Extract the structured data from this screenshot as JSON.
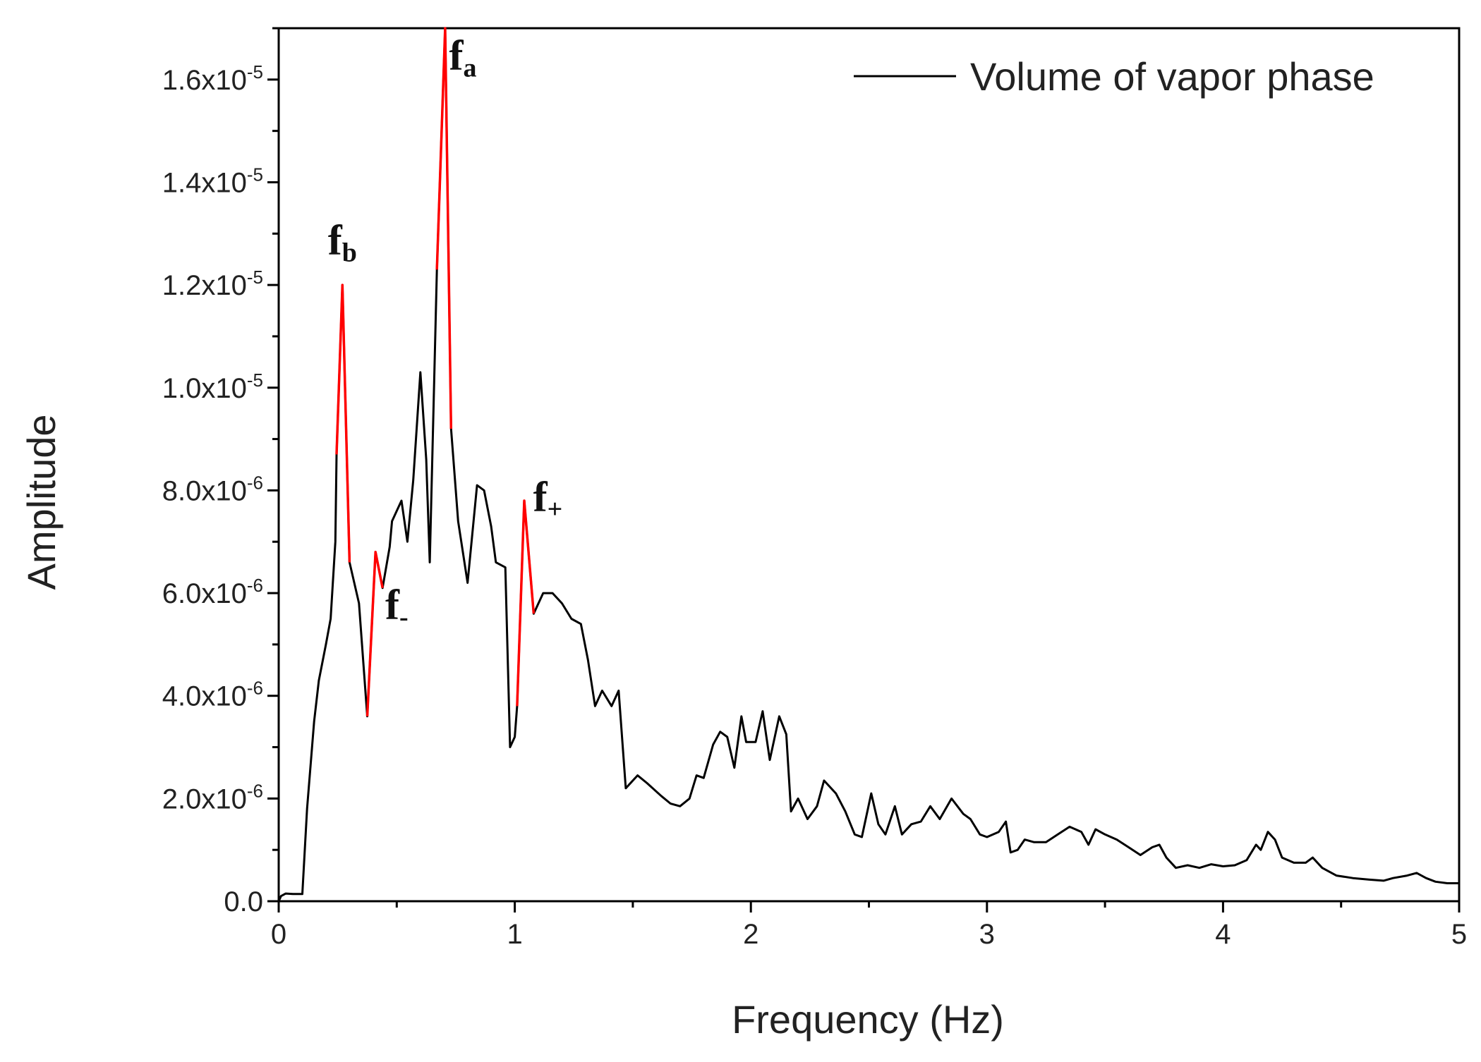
{
  "chart_data": {
    "type": "line",
    "xlabel": "Frequency (Hz)",
    "ylabel": "Amplitude",
    "xlim": [
      0,
      5
    ],
    "ylim": [
      0,
      1.7e-05
    ],
    "x_ticks": [
      {
        "value": 0,
        "label": "0"
      },
      {
        "value": 1,
        "label": "1"
      },
      {
        "value": 2,
        "label": "2"
      },
      {
        "value": 3,
        "label": "3"
      },
      {
        "value": 4,
        "label": "4"
      },
      {
        "value": 5,
        "label": "5"
      }
    ],
    "y_ticks": [
      {
        "value": 0,
        "base": "0.0",
        "exp": ""
      },
      {
        "value": 2e-06,
        "base": "2.0x10",
        "exp": "-6"
      },
      {
        "value": 4e-06,
        "base": "4.0x10",
        "exp": "-6"
      },
      {
        "value": 6e-06,
        "base": "6.0x10",
        "exp": "-6"
      },
      {
        "value": 8e-06,
        "base": "8.0x10",
        "exp": "-6"
      },
      {
        "value": 1e-05,
        "base": "1.0x10",
        "exp": "-5"
      },
      {
        "value": 1.2e-05,
        "base": "1.2x10",
        "exp": "-5"
      },
      {
        "value": 1.4e-05,
        "base": "1.4x10",
        "exp": "-5"
      },
      {
        "value": 1.6e-05,
        "base": "1.6x10",
        "exp": "-5"
      }
    ],
    "grid": false,
    "legend_position": "top-right",
    "series": [
      {
        "name": "Volume of vapor phase",
        "color": "#000000",
        "points": [
          [
            0.0,
            0.0
          ],
          [
            0.01,
            1e-07
          ],
          [
            0.03,
            1.5e-07
          ],
          [
            0.06,
            1.4e-07
          ],
          [
            0.1,
            1.4e-07
          ],
          [
            0.12,
            1.8e-06
          ],
          [
            0.15,
            3.5e-06
          ],
          [
            0.17,
            4.3e-06
          ],
          [
            0.2,
            5e-06
          ],
          [
            0.22,
            5.5e-06
          ],
          [
            0.24,
            7e-06
          ],
          [
            0.245,
            8.7e-06
          ],
          [
            0.27,
            1.2e-05
          ],
          [
            0.3,
            6.6e-06
          ],
          [
            0.34,
            5.8e-06
          ],
          [
            0.375,
            3.6e-06
          ],
          [
            0.41,
            6.8e-06
          ],
          [
            0.44,
            6.1e-06
          ],
          [
            0.47,
            6.9e-06
          ],
          [
            0.48,
            7.4e-06
          ],
          [
            0.5,
            7.6e-06
          ],
          [
            0.52,
            7.8e-06
          ],
          [
            0.545,
            7e-06
          ],
          [
            0.57,
            8.2e-06
          ],
          [
            0.6,
            1.03e-05
          ],
          [
            0.625,
            8.6e-06
          ],
          [
            0.64,
            6.6e-06
          ],
          [
            0.67,
            1.23e-05
          ],
          [
            0.705,
            1.7e-05
          ],
          [
            0.73,
            9.2e-06
          ],
          [
            0.76,
            7.4e-06
          ],
          [
            0.8,
            6.2e-06
          ],
          [
            0.84,
            8.1e-06
          ],
          [
            0.87,
            8e-06
          ],
          [
            0.9,
            7.3e-06
          ],
          [
            0.92,
            6.6e-06
          ],
          [
            0.96,
            6.5e-06
          ],
          [
            0.98,
            3e-06
          ],
          [
            1.0,
            3.2e-06
          ],
          [
            1.01,
            3.8e-06
          ],
          [
            1.04,
            7.8e-06
          ],
          [
            1.08,
            5.6e-06
          ],
          [
            1.12,
            6e-06
          ],
          [
            1.16,
            6e-06
          ],
          [
            1.2,
            5.8e-06
          ],
          [
            1.24,
            5.5e-06
          ],
          [
            1.28,
            5.4e-06
          ],
          [
            1.31,
            4.7e-06
          ],
          [
            1.34,
            3.8e-06
          ],
          [
            1.37,
            4.1e-06
          ],
          [
            1.41,
            3.8e-06
          ],
          [
            1.44,
            4.1e-06
          ],
          [
            1.47,
            2.2e-06
          ],
          [
            1.52,
            2.45e-06
          ],
          [
            1.56,
            2.3e-06
          ],
          [
            1.62,
            2.05e-06
          ],
          [
            1.66,
            1.9e-06
          ],
          [
            1.7,
            1.85e-06
          ],
          [
            1.74,
            2e-06
          ],
          [
            1.77,
            2.45e-06
          ],
          [
            1.8,
            2.4e-06
          ],
          [
            1.84,
            3.05e-06
          ],
          [
            1.87,
            3.3e-06
          ],
          [
            1.9,
            3.2e-06
          ],
          [
            1.93,
            2.6e-06
          ],
          [
            1.96,
            3.6e-06
          ],
          [
            1.98,
            3.1e-06
          ],
          [
            2.02,
            3.1e-06
          ],
          [
            2.05,
            3.7e-06
          ],
          [
            2.08,
            2.75e-06
          ],
          [
            2.12,
            3.6e-06
          ],
          [
            2.15,
            3.25e-06
          ],
          [
            2.17,
            1.75e-06
          ],
          [
            2.2,
            2e-06
          ],
          [
            2.24,
            1.6e-06
          ],
          [
            2.28,
            1.85e-06
          ],
          [
            2.31,
            2.35e-06
          ],
          [
            2.36,
            2.1e-06
          ],
          [
            2.4,
            1.75e-06
          ],
          [
            2.44,
            1.3e-06
          ],
          [
            2.47,
            1.25e-06
          ],
          [
            2.51,
            2.1e-06
          ],
          [
            2.54,
            1.5e-06
          ],
          [
            2.57,
            1.3e-06
          ],
          [
            2.61,
            1.85e-06
          ],
          [
            2.64,
            1.3e-06
          ],
          [
            2.68,
            1.5e-06
          ],
          [
            2.72,
            1.55e-06
          ],
          [
            2.76,
            1.85e-06
          ],
          [
            2.8,
            1.6e-06
          ],
          [
            2.85,
            2e-06
          ],
          [
            2.9,
            1.7e-06
          ],
          [
            2.93,
            1.6e-06
          ],
          [
            2.97,
            1.3e-06
          ],
          [
            3.0,
            1.25e-06
          ],
          [
            3.05,
            1.35e-06
          ],
          [
            3.08,
            1.55e-06
          ],
          [
            3.1,
            9.5e-07
          ],
          [
            3.13,
            1e-06
          ],
          [
            3.16,
            1.2e-06
          ],
          [
            3.2,
            1.15e-06
          ],
          [
            3.25,
            1.15e-06
          ],
          [
            3.3,
            1.3e-06
          ],
          [
            3.35,
            1.45e-06
          ],
          [
            3.4,
            1.35e-06
          ],
          [
            3.43,
            1.1e-06
          ],
          [
            3.46,
            1.4e-06
          ],
          [
            3.5,
            1.3e-06
          ],
          [
            3.55,
            1.2e-06
          ],
          [
            3.6,
            1.05e-06
          ],
          [
            3.65,
            9e-07
          ],
          [
            3.7,
            1.05e-06
          ],
          [
            3.73,
            1.1e-06
          ],
          [
            3.76,
            8.5e-07
          ],
          [
            3.8,
            6.5e-07
          ],
          [
            3.85,
            7e-07
          ],
          [
            3.9,
            6.5e-07
          ],
          [
            3.95,
            7.2e-07
          ],
          [
            4.0,
            6.8e-07
          ],
          [
            4.05,
            7e-07
          ],
          [
            4.1,
            8e-07
          ],
          [
            4.14,
            1.1e-06
          ],
          [
            4.16,
            1e-06
          ],
          [
            4.19,
            1.35e-06
          ],
          [
            4.22,
            1.2e-06
          ],
          [
            4.25,
            8.5e-07
          ],
          [
            4.3,
            7.5e-07
          ],
          [
            4.35,
            7.5e-07
          ],
          [
            4.38,
            8.5e-07
          ],
          [
            4.42,
            6.5e-07
          ],
          [
            4.48,
            5e-07
          ],
          [
            4.55,
            4.5e-07
          ],
          [
            4.62,
            4.2e-07
          ],
          [
            4.68,
            4e-07
          ],
          [
            4.72,
            4.5e-07
          ],
          [
            4.78,
            5e-07
          ],
          [
            4.82,
            5.5e-07
          ],
          [
            4.86,
            4.5e-07
          ],
          [
            4.9,
            3.8e-07
          ],
          [
            4.95,
            3.5e-07
          ],
          [
            5.0,
            3.5e-07
          ]
        ],
        "highlight_color": "#ff0000",
        "highlight_ranges": [
          [
            0.245,
            0.3
          ],
          [
            0.375,
            0.44
          ],
          [
            0.67,
            0.73
          ],
          [
            1.01,
            1.08
          ]
        ]
      }
    ],
    "annotations": [
      {
        "x": 0.27,
        "y": 1.26e-05,
        "main": "f",
        "sub": "b"
      },
      {
        "x": 0.78,
        "y": 1.62e-05,
        "main": "f",
        "sub": "a"
      },
      {
        "x": 1.14,
        "y": 7.6e-06,
        "main": "f",
        "sub": "+"
      },
      {
        "x": 0.5,
        "y": 5.5e-06,
        "main": "f",
        "sub": "-"
      }
    ]
  }
}
